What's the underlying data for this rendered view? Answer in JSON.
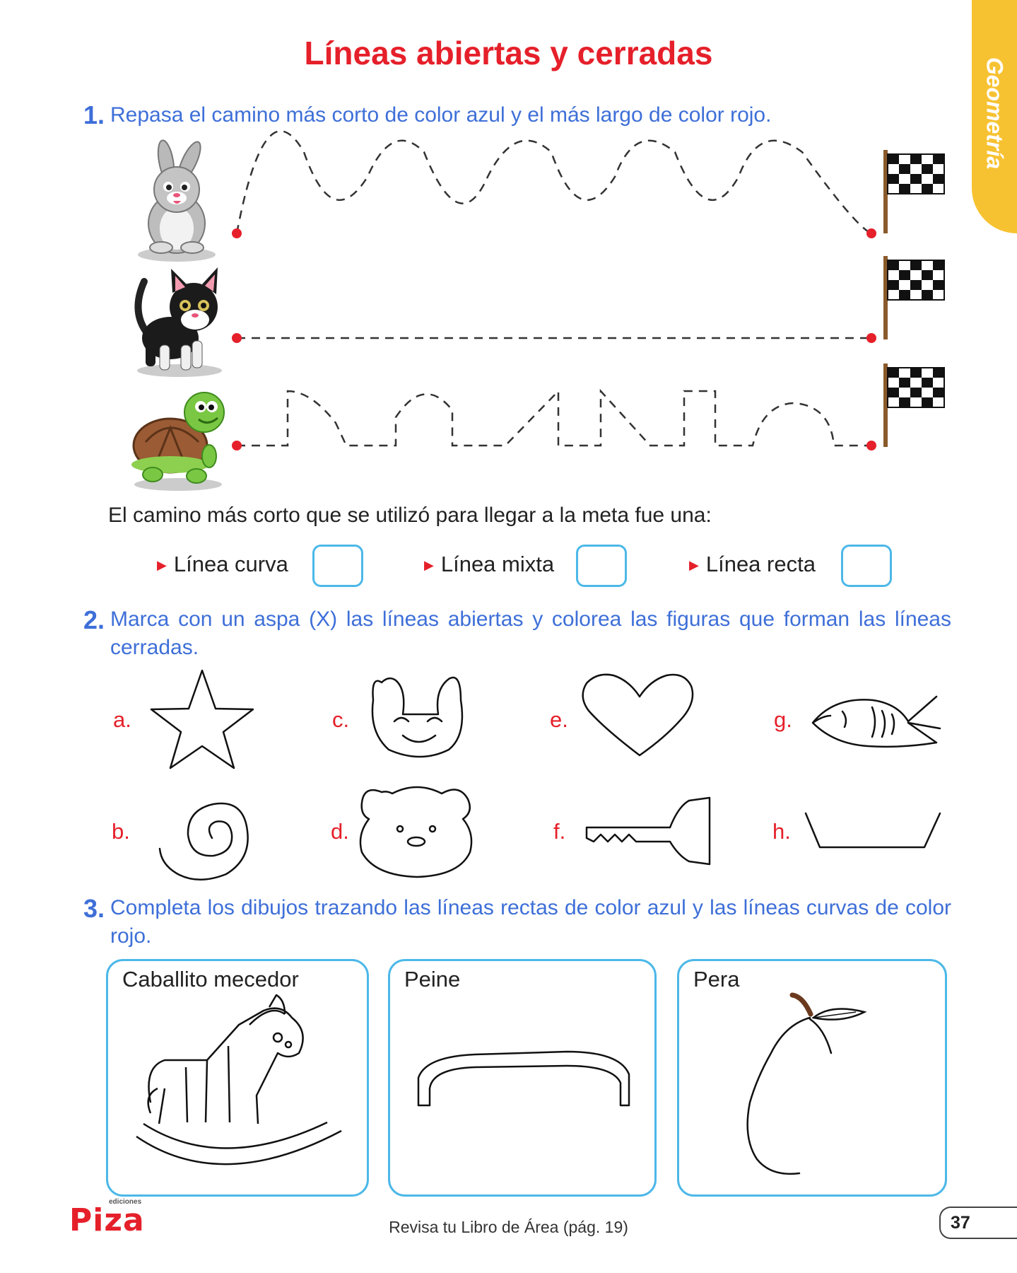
{
  "title": "Líneas abiertas y cerradas",
  "side_tab": "Geometría",
  "exercise1": {
    "number": "1.",
    "instruction": "Repasa el camino más corto de color azul y el más largo de color rojo.",
    "question": "El camino más corto que se utilizó para llegar a la meta fue una:",
    "options": [
      "Línea curva",
      "Línea mixta",
      "Línea recta"
    ]
  },
  "exercise2": {
    "number": "2.",
    "instruction": "Marca con un aspa (X) las líneas abiertas y colorea las figuras que forman las líneas cerradas.",
    "letters": [
      "a.",
      "b.",
      "c.",
      "d.",
      "e.",
      "f.",
      "g.",
      "h."
    ]
  },
  "exercise3": {
    "number": "3.",
    "instruction": "Completa los dibujos trazando las líneas rectas de color azul y las líneas curvas de color rojo.",
    "cards": [
      "Caballito mecedor",
      "Peine",
      "Pera"
    ]
  },
  "footer": {
    "note": "Revisa tu Libro de Área (pág. 19)",
    "page": "37",
    "logo_small": "ediciones",
    "logo_main": "Piza"
  },
  "colors": {
    "title_red": "#e5202a",
    "instruction_blue": "#3e6fd8",
    "box_blue": "#4cb8e8",
    "tab_yellow": "#f7c231"
  }
}
